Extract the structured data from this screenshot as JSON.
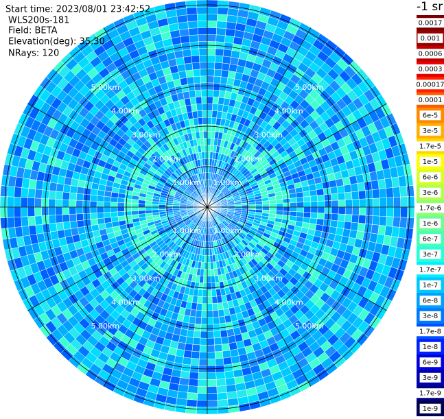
{
  "header": {
    "start_time": "Start time: 2023/08/01 23:42:52",
    "instrument": "WLS200s-181",
    "field": "Field: BETA",
    "elevation": "Elevation(deg): 35.30",
    "nrays": "NRays: 120"
  },
  "range_rings": [
    "1.00km",
    "2.00km",
    "3.00km",
    "4.00km",
    "5.00km"
  ],
  "colorbar": {
    "unit": "-1 sr",
    "levels": [
      {
        "label": "0.0017",
        "color": "#7a0000"
      },
      {
        "label": "0.001",
        "color": "#9a0000"
      },
      {
        "label": "0.0006",
        "color": "#c00000"
      },
      {
        "label": "0.0003",
        "color": "#e80000"
      },
      {
        "label": "0.00017",
        "color": "#ff2000"
      },
      {
        "label": "0.0001",
        "color": "#ff5a00"
      },
      {
        "label": "6e-5",
        "color": "#ff8a00"
      },
      {
        "label": "3e-5",
        "color": "#ffb000"
      },
      {
        "label": "1.7e-5",
        "color": "#ffd800"
      },
      {
        "label": "1e-5",
        "color": "#ffff00"
      },
      {
        "label": "6e-6",
        "color": "#d8ff28"
      },
      {
        "label": "3e-6",
        "color": "#b4ff4c"
      },
      {
        "label": "1.7e-6",
        "color": "#90ff70"
      },
      {
        "label": "1e-6",
        "color": "#6cff94"
      },
      {
        "label": "6e-7",
        "color": "#48ffb8"
      },
      {
        "label": "3e-7",
        "color": "#26ffdc"
      },
      {
        "label": "1.7e-7",
        "color": "#00f0ff"
      },
      {
        "label": "1e-7",
        "color": "#00c8ff"
      },
      {
        "label": "6e-8",
        "color": "#00a0ff"
      },
      {
        "label": "3e-8",
        "color": "#0078ff"
      },
      {
        "label": "1.7e-8",
        "color": "#0050ff"
      },
      {
        "label": "1e-8",
        "color": "#0020ff"
      },
      {
        "label": "6e-9",
        "color": "#0000e0"
      },
      {
        "label": "3e-9",
        "color": "#0000b0"
      },
      {
        "label": "1.7e-9",
        "color": "#000080"
      },
      {
        "label": "1e-9",
        "color": "#000050"
      }
    ]
  }
}
